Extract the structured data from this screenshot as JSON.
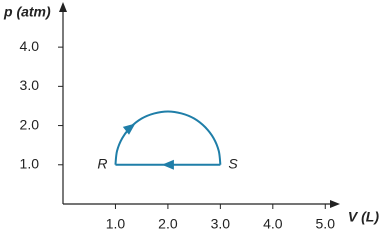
{
  "chart_data": {
    "type": "line",
    "x_label": "V (L)",
    "y_label": "p (atm)",
    "xlim": [
      0,
      5.3
    ],
    "ylim": [
      0,
      5.1
    ],
    "xticks": [
      {
        "value": 1,
        "label": "1.0"
      },
      {
        "value": 2,
        "label": "2.0"
      },
      {
        "value": 3,
        "label": "3.0"
      },
      {
        "value": 4,
        "label": "4.0"
      },
      {
        "value": 5,
        "label": "5.0"
      }
    ],
    "yticks": [
      {
        "value": 1,
        "label": "1.0"
      },
      {
        "value": 2,
        "label": "2.0"
      },
      {
        "value": 3,
        "label": "3.0"
      },
      {
        "value": 4,
        "label": "4.0"
      }
    ],
    "series": [
      {
        "color": "#1f7ea8",
        "x": [
          1,
          1.03,
          1.13,
          1.29,
          1.5,
          1.74,
          2,
          2.26,
          2.5,
          2.71,
          2.87,
          2.97,
          3
        ],
        "values": [
          1,
          1.35,
          1.68,
          1.96,
          2.18,
          2.31,
          2.36,
          2.31,
          2.18,
          1.96,
          1.68,
          1.35,
          1
        ]
      },
      {
        "color": "#1f7ea8",
        "x": [
          3,
          1
        ],
        "values": [
          1,
          1
        ]
      }
    ],
    "point_labels": [
      {
        "label": "R",
        "x": 1,
        "y": 1
      },
      {
        "label": "S",
        "x": 3,
        "y": 1
      }
    ]
  }
}
